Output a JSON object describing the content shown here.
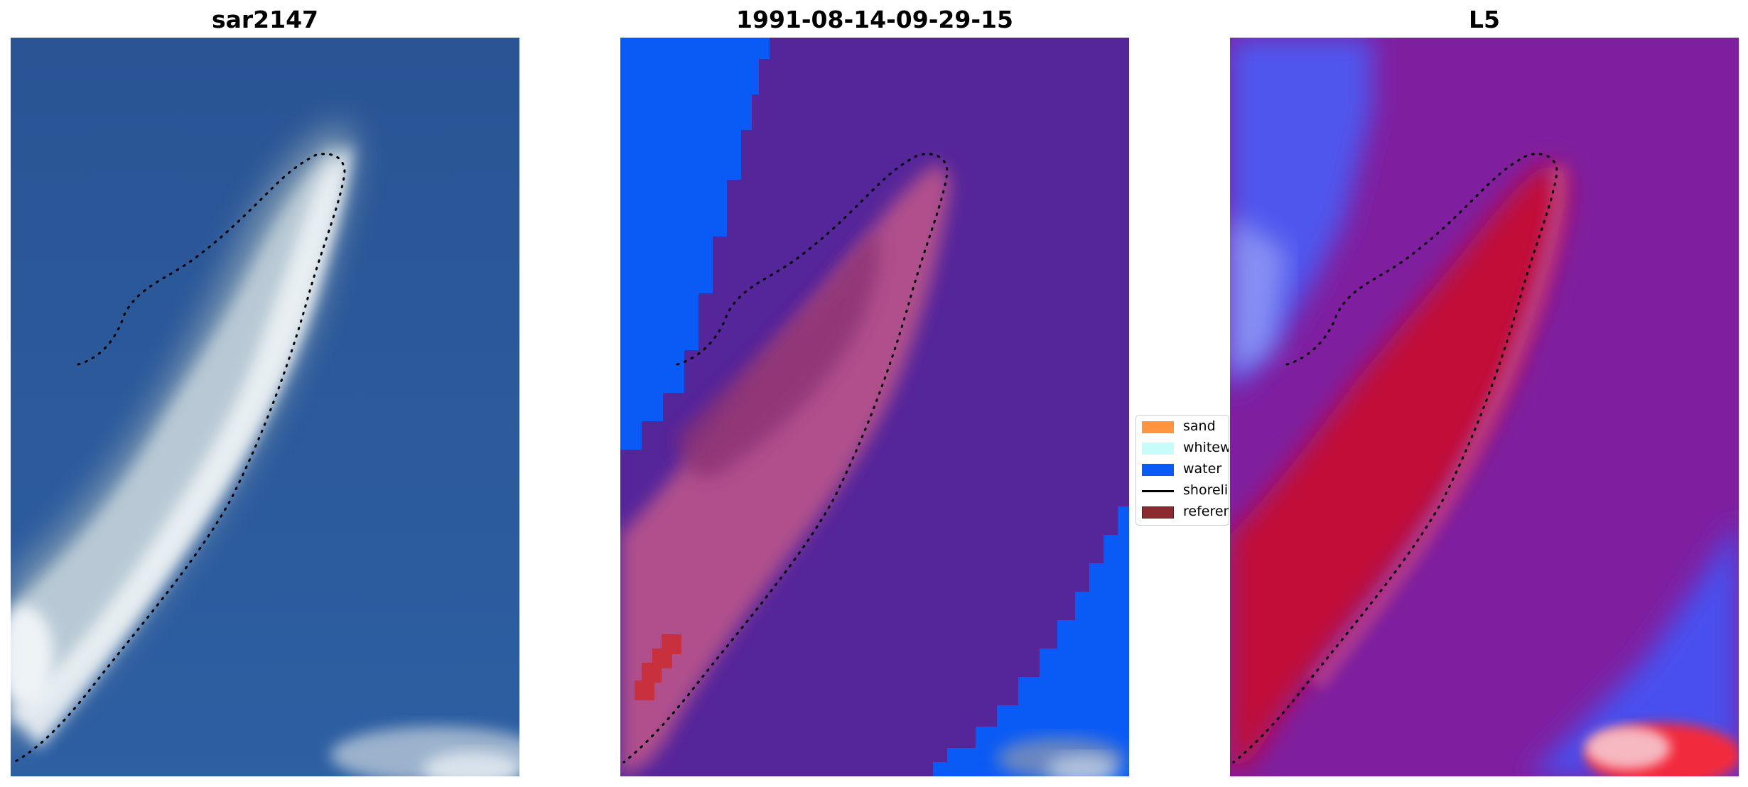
{
  "panels": [
    {
      "title": "sar2147",
      "kind": "rgb"
    },
    {
      "title": "1991-08-14-09-29-15",
      "kind": "classified"
    },
    {
      "title": "L5",
      "kind": "index"
    }
  ],
  "legend": {
    "items": [
      {
        "label": "sand",
        "type": "patch",
        "color": "#ff9540"
      },
      {
        "label": "whitewater",
        "type": "patch",
        "color": "#c8fcfb"
      },
      {
        "label": "water",
        "type": "patch",
        "color": "#0a5af5"
      },
      {
        "label": "shoreline",
        "type": "line",
        "color": "#000000"
      },
      {
        "label": "reference",
        "type": "patch",
        "color": "#8b2b2f"
      }
    ]
  },
  "colors": {
    "ocean_rgb": "#2d5a9b",
    "island_rgb": "#e6eef2",
    "water_class": "#0a5af5",
    "background_class": "#55259a",
    "land_class": "#b04f8c",
    "index_high": "#c20a39",
    "index_mid": "#7f1fa0",
    "index_low": "#3f4bf0"
  }
}
